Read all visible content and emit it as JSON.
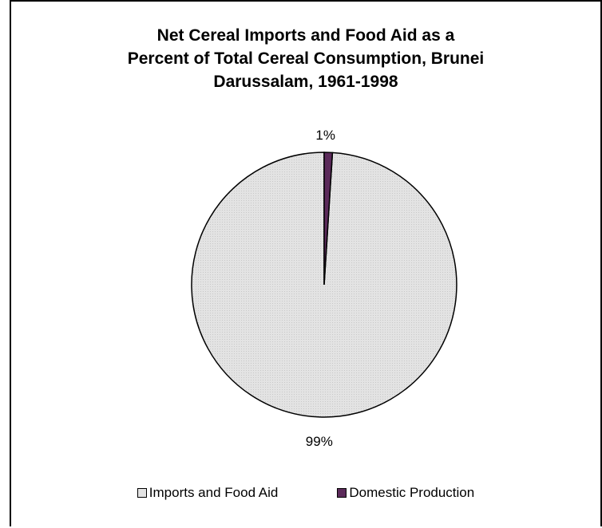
{
  "chart_data": {
    "type": "pie",
    "title": "Net Cereal Imports and Food Aid as a Percent of Total Cereal Consumption, Brunei Darussalam, 1961-1998",
    "title_lines": [
      "Net Cereal Imports and Food Aid as a",
      "Percent of Total Cereal Consumption, Brunei",
      "Darussalam, 1961-1998"
    ],
    "slices": [
      {
        "name": "Imports and Food Aid",
        "value": 99,
        "label": "99%",
        "color": "#e3e3e3"
      },
      {
        "name": "Domestic Production",
        "value": 1,
        "label": "1%",
        "color": "#5b2a5a"
      }
    ],
    "legend_position": "bottom",
    "start_angle": "12 o'clock",
    "direction": "clockwise-from-domestic"
  }
}
